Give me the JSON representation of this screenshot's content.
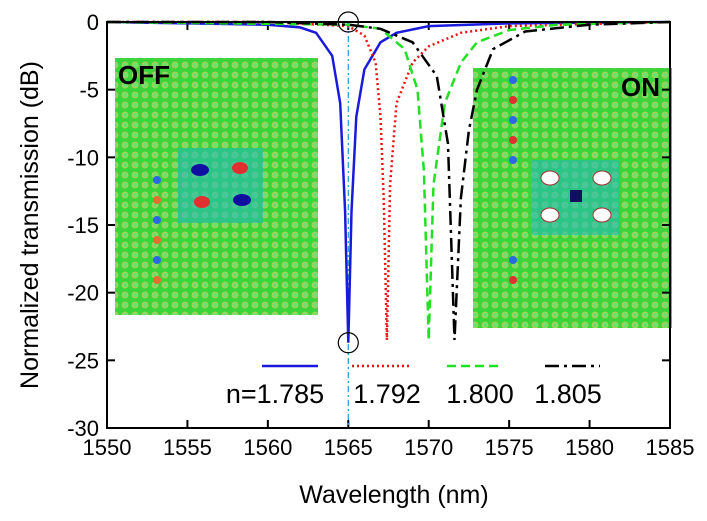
{
  "chart_data": {
    "type": "line",
    "xlabel": "Wavelength (nm)",
    "ylabel": "Normalized transmission (dB)",
    "xlim": [
      1550,
      1585
    ],
    "xticks": [
      1550,
      1555,
      1560,
      1565,
      1570,
      1575,
      1580,
      1585
    ],
    "ylim": [
      -30,
      0
    ],
    "yticks": [
      0,
      -5,
      -10,
      -15,
      -20,
      -25,
      -30
    ],
    "series": [
      {
        "name": "n=1.785",
        "color": "#1a1adb",
        "dash": "solid",
        "x": [
          1550,
          1560,
          1562,
          1563,
          1564,
          1564.5,
          1564.8,
          1565,
          1565.2,
          1565.5,
          1566,
          1567,
          1568,
          1570,
          1575,
          1585
        ],
        "values": [
          0,
          -0.2,
          -0.4,
          -0.8,
          -2.5,
          -6,
          -14,
          -23.7,
          -14,
          -7,
          -3.5,
          -1.5,
          -0.8,
          -0.3,
          -0.1,
          0
        ]
      },
      {
        "name": "1.792",
        "color": "#ee1111",
        "dash": "dotted",
        "x": [
          1550,
          1560,
          1565,
          1566,
          1566.7,
          1567,
          1567.2,
          1567.4,
          1567.6,
          1568,
          1569,
          1570,
          1572,
          1575,
          1585
        ],
        "values": [
          0,
          0,
          -0.3,
          -1,
          -3,
          -7,
          -13,
          -23.5,
          -12,
          -6,
          -3,
          -1.8,
          -0.8,
          -0.3,
          0
        ]
      },
      {
        "name": "1.800",
        "color": "#22e022",
        "dash": "dashed",
        "x": [
          1550,
          1565,
          1567,
          1568.5,
          1569.3,
          1569.7,
          1570,
          1570.3,
          1571,
          1572,
          1573,
          1575,
          1578,
          1585
        ],
        "values": [
          0,
          -0.2,
          -0.5,
          -2,
          -5,
          -11,
          -23.5,
          -12,
          -6,
          -3,
          -1.5,
          -0.6,
          -0.2,
          0
        ]
      },
      {
        "name": "1.805",
        "color": "#000000",
        "dash": "dashdot",
        "x": [
          1550,
          1560,
          1565,
          1567,
          1569,
          1570.5,
          1571.2,
          1571.6,
          1572,
          1572.5,
          1573,
          1574,
          1576,
          1580,
          1585
        ],
        "values": [
          0,
          0,
          -0.2,
          -0.5,
          -1.5,
          -4,
          -9,
          -23.5,
          -13,
          -8,
          -5,
          -2,
          -0.7,
          -0.2,
          0
        ]
      }
    ],
    "reference_line_x": 1565,
    "markers": [
      {
        "x": 1565,
        "y": 0
      },
      {
        "x": 1565,
        "y": -23.7
      }
    ],
    "insets": [
      {
        "label": "OFF"
      },
      {
        "label": "ON"
      }
    ]
  }
}
